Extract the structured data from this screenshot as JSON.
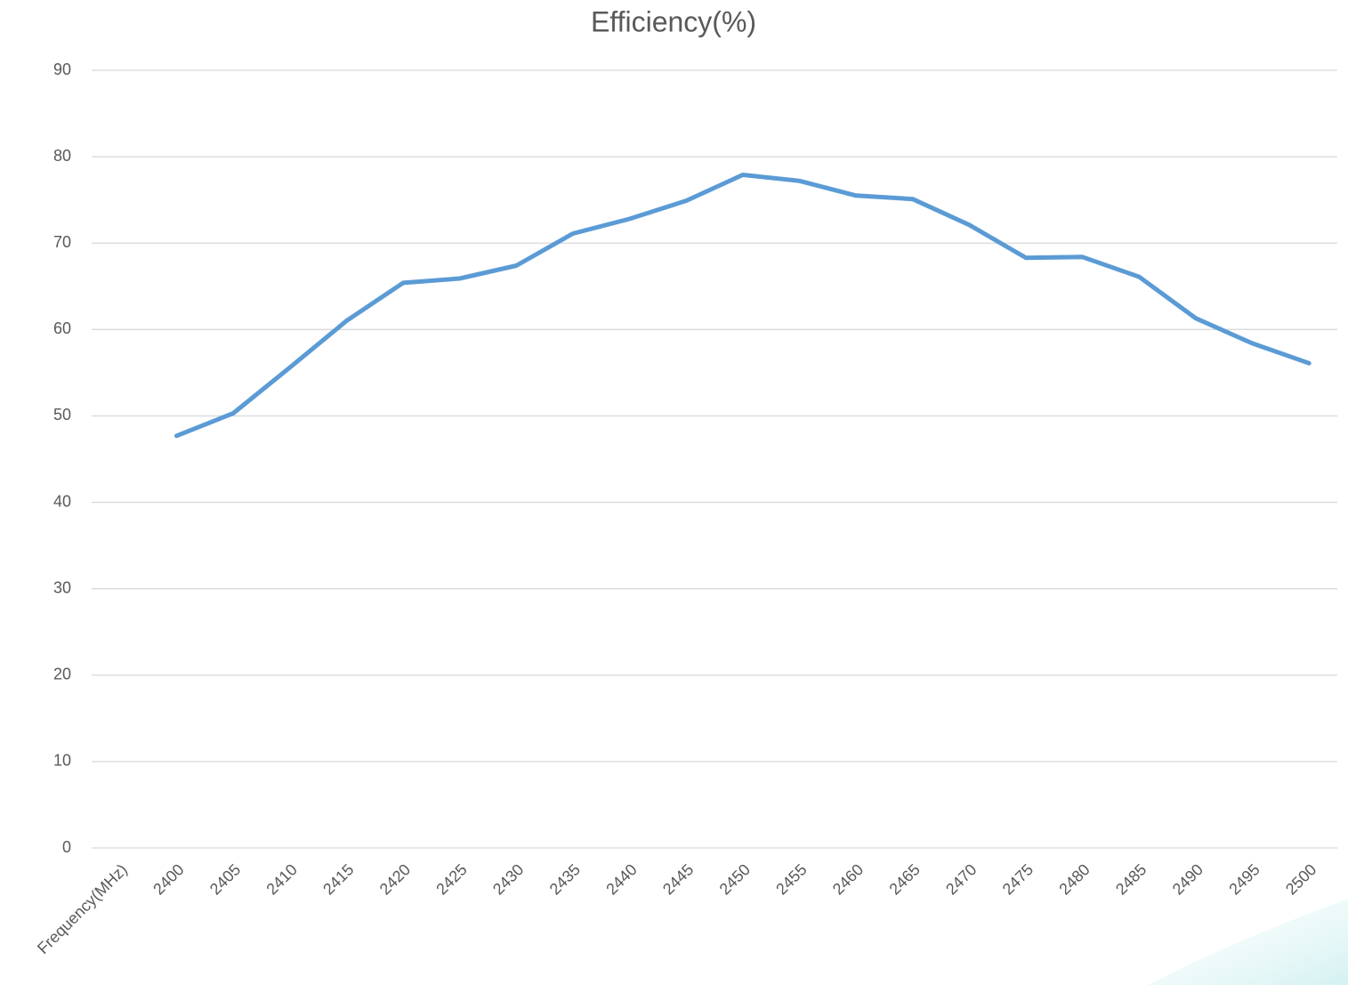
{
  "chart_data": {
    "type": "line",
    "title": "Efficiency(%)",
    "categories": [
      "Frequency(MHz)",
      "2400",
      "2405",
      "2410",
      "2415",
      "2420",
      "2425",
      "2430",
      "2435",
      "2440",
      "2445",
      "2450",
      "2455",
      "2460",
      "2465",
      "2470",
      "2475",
      "2480",
      "2485",
      "2490",
      "2495",
      "2500"
    ],
    "series": [
      {
        "name": "Efficiency(%)",
        "color": "#5b9bd5",
        "values": [
          null,
          47.7,
          50.3,
          55.6,
          61.0,
          65.4,
          65.9,
          67.4,
          71.1,
          72.8,
          74.9,
          77.9,
          77.2,
          75.5,
          75.1,
          72.1,
          68.3,
          68.4,
          66.1,
          61.3,
          58.4,
          56.1
        ]
      }
    ],
    "ylim": [
      0,
      90
    ],
    "yticks": [
      0,
      10,
      20,
      30,
      40,
      50,
      60,
      70,
      80,
      90
    ],
    "grid": true
  }
}
